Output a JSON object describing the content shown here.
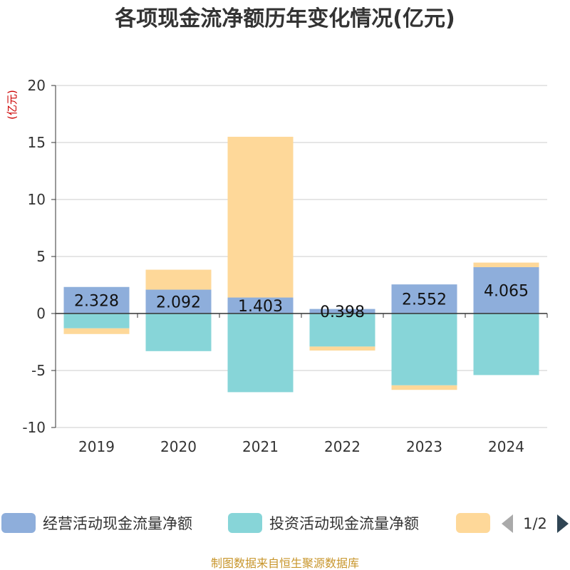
{
  "chart_data": {
    "type": "bar",
    "stacked": true,
    "title": "各项现金流净额历年变化情况(亿元)",
    "ylabel": "(亿元)",
    "xlabel": "",
    "categories": [
      "2019",
      "2020",
      "2021",
      "2022",
      "2023",
      "2024"
    ],
    "ylim": [
      -10,
      20
    ],
    "yticks": [
      20,
      15,
      10,
      5,
      0,
      -5,
      -10
    ],
    "grid": true,
    "series": [
      {
        "name": "经营活动现金流量净额",
        "color": "#8eaedb",
        "values": [
          2.328,
          2.092,
          1.403,
          0.398,
          2.552,
          4.065
        ],
        "labels": [
          "2.328",
          "2.092",
          "1.403",
          "0.398",
          "2.552",
          "4.065"
        ]
      },
      {
        "name": "投资活动现金流量净额",
        "color": "#87d5d8",
        "values": [
          -1.3,
          -3.3,
          -6.9,
          -2.9,
          -6.3,
          -5.4
        ]
      },
      {
        "color": "#fed899",
        "values": [
          -0.5,
          1.75,
          14.1,
          -0.35,
          -0.4,
          0.4
        ]
      }
    ],
    "legend": {
      "position": "bottom",
      "page": "1/2"
    }
  },
  "footer": "制图数据来自恒生聚源数据库",
  "colors": {
    "title": "#333333",
    "axis": "#333333",
    "grid": "#cccccc",
    "unit": "#cc0000",
    "footer": "#c8962c",
    "pager_active": "#2f4554",
    "pager_inactive": "#aaaaaa"
  }
}
